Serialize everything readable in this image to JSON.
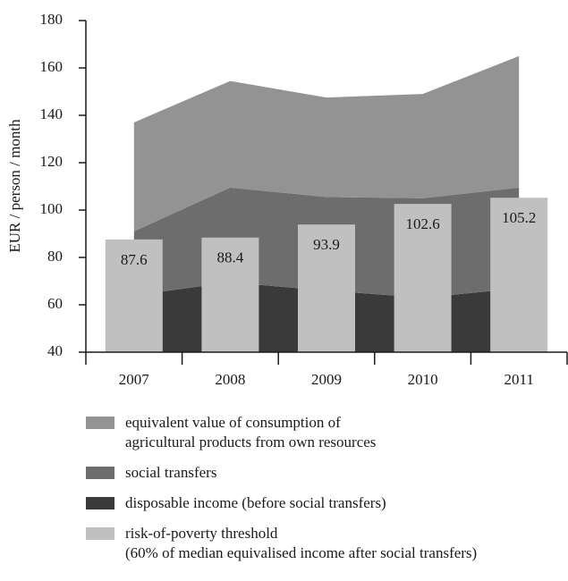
{
  "chart_data": {
    "type": "area",
    "y_label": "EUR / person / month",
    "categories": [
      "2007",
      "2008",
      "2009",
      "2010",
      "2011"
    ],
    "ylim": [
      40,
      180
    ],
    "yticks": [
      40,
      60,
      80,
      100,
      120,
      140,
      160,
      180
    ],
    "series": [
      {
        "name": "disposable income (before social transfers)",
        "type": "area",
        "color": "#3a3a3a",
        "values": [
          64,
          69.5,
          66,
          63,
          67
        ]
      },
      {
        "name": "social transfers",
        "type": "area",
        "color": "#6d6d6d",
        "values": [
          27,
          40,
          39.5,
          42,
          42.5
        ]
      },
      {
        "name": "equivalent value of consumption of\nagricultural products from own resources",
        "type": "area",
        "color": "#939393",
        "values": [
          46,
          45,
          42,
          44,
          55.5
        ]
      },
      {
        "name": "risk-of-poverty threshold\n(60% of median equivalised income after social transfers)",
        "type": "bar",
        "color": "#c0c0c1",
        "values": [
          87.6,
          88.4,
          93.9,
          102.6,
          105.2
        ]
      }
    ],
    "legend_order": [
      2,
      1,
      0,
      3
    ]
  }
}
